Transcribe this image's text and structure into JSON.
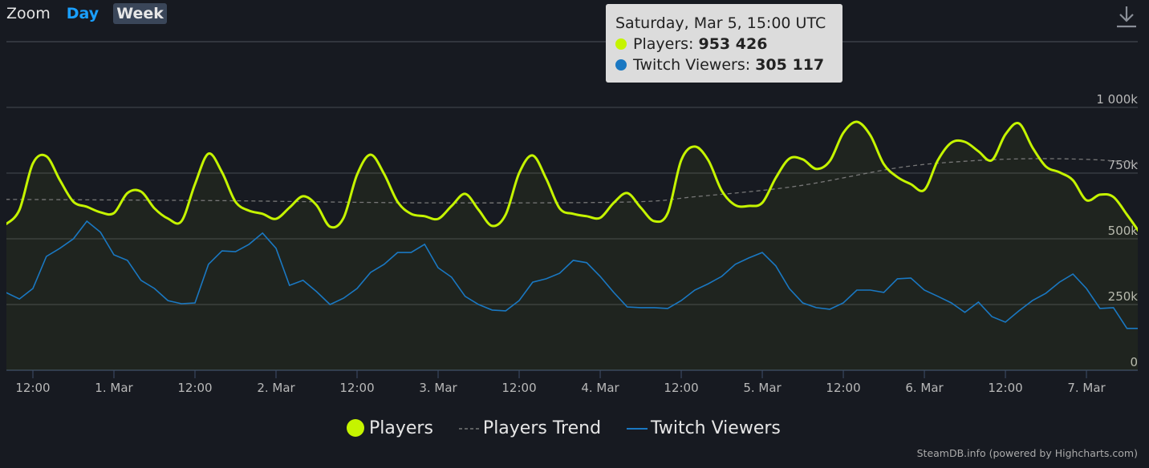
{
  "zoom": {
    "label": "Zoom",
    "buttons": [
      {
        "label": "Day",
        "active": false
      },
      {
        "label": "Week",
        "active": true
      }
    ]
  },
  "download_icon": "download-icon",
  "tooltip": {
    "title": "Saturday, Mar 5, 15:00 UTC",
    "rows": [
      {
        "name": "Players",
        "sep": ": ",
        "value": "953 426",
        "color": "#c5f400"
      },
      {
        "name": "Twitch Viewers",
        "sep": ": ",
        "value": "305 117",
        "color": "#1a78c2"
      }
    ]
  },
  "credit": "SteamDB.info (powered by Highcharts.com)",
  "chart_data": {
    "type": "line",
    "title": "",
    "x_unit": "hours since Feb 28 00:00 UTC",
    "xlim": [
      8,
      176
    ],
    "ylim": [
      0,
      1000
    ],
    "y_unit": "thousands",
    "grid": true,
    "legend_position": "bottom-center",
    "y_ticks": [
      {
        "v": 0,
        "label": "0"
      },
      {
        "v": 250,
        "label": "250k"
      },
      {
        "v": 500,
        "label": "500k"
      },
      {
        "v": 750,
        "label": "750k"
      },
      {
        "v": 1000,
        "label": "1 000k"
      }
    ],
    "x_ticks": [
      {
        "h": 12,
        "label": "12:00"
      },
      {
        "h": 24,
        "label": "1. Mar"
      },
      {
        "h": 36,
        "label": "12:00"
      },
      {
        "h": 48,
        "label": "2. Mar"
      },
      {
        "h": 60,
        "label": "12:00"
      },
      {
        "h": 72,
        "label": "3. Mar"
      },
      {
        "h": 84,
        "label": "12:00"
      },
      {
        "h": 96,
        "label": "4. Mar"
      },
      {
        "h": 108,
        "label": "12:00"
      },
      {
        "h": 120,
        "label": "5. Mar"
      },
      {
        "h": 132,
        "label": "12:00"
      },
      {
        "h": 144,
        "label": "6. Mar"
      },
      {
        "h": 156,
        "label": "12:00"
      },
      {
        "h": 168,
        "label": "7. Mar"
      }
    ],
    "x": [
      8,
      10,
      12,
      14,
      16,
      18,
      20,
      22,
      24,
      26,
      28,
      30,
      32,
      34,
      36,
      38,
      40,
      42,
      44,
      46,
      48,
      50,
      52,
      54,
      56,
      58,
      60,
      62,
      64,
      66,
      68,
      70,
      72,
      74,
      76,
      78,
      80,
      82,
      84,
      86,
      88,
      90,
      92,
      94,
      96,
      98,
      100,
      102,
      104,
      106,
      108,
      110,
      112,
      114,
      116,
      118,
      120,
      122,
      124,
      126,
      128,
      130,
      132,
      134,
      136,
      138,
      140,
      142,
      144,
      146,
      148,
      150,
      152,
      154,
      156,
      158,
      160,
      162,
      164,
      166,
      168,
      170,
      172,
      174,
      176
    ],
    "series": [
      {
        "name": "Players",
        "color": "#c5f400",
        "values": [
          555,
          610,
          787,
          814,
          723,
          641,
          622,
          601,
          598,
          674,
          680,
          616,
          577,
          567,
          708,
          824,
          753,
          641,
          607,
          595,
          576,
          619,
          662,
          628,
          546,
          580,
          744,
          820,
          747,
          641,
          595,
          586,
          576,
          625,
          671,
          610,
          549,
          592,
          750,
          817,
          729,
          616,
          595,
          586,
          580,
          637,
          674,
          619,
          567,
          598,
          799,
          851,
          799,
          683,
          628,
          625,
          637,
          732,
          805,
          802,
          766,
          796,
          903,
          945,
          894,
          784,
          735,
          708,
          686,
          799,
          866,
          869,
          833,
          799,
          897,
          939,
          848,
          775,
          753,
          723,
          647,
          668,
          659,
          592,
          519
        ]
      },
      {
        "name": "Players Trend",
        "color": "#777777",
        "dashed": true,
        "x": [
          8,
          40,
          70,
          100,
          110,
          125,
          140,
          150,
          160,
          170,
          176
        ],
        "values": [
          650,
          645,
          637,
          640,
          660,
          700,
          770,
          795,
          805,
          800,
          785
        ]
      },
      {
        "name": "Twitch Viewers",
        "color": "#1a78c2",
        "values": [
          296,
          271,
          311,
          433,
          464,
          500,
          567,
          525,
          439,
          418,
          342,
          311,
          265,
          253,
          256,
          403,
          454,
          451,
          479,
          522,
          464,
          323,
          342,
          299,
          250,
          274,
          311,
          372,
          403,
          448,
          448,
          479,
          390,
          354,
          281,
          250,
          229,
          226,
          265,
          335,
          348,
          369,
          418,
          409,
          357,
          296,
          241,
          238,
          238,
          235,
          265,
          305,
          329,
          357,
          403,
          427,
          448,
          397,
          311,
          256,
          238,
          232,
          256,
          305,
          305,
          296,
          348,
          351,
          305,
          281,
          256,
          220,
          259,
          204,
          183,
          226,
          265,
          293,
          335,
          366,
          311,
          235,
          238,
          159,
          159
        ]
      }
    ]
  }
}
